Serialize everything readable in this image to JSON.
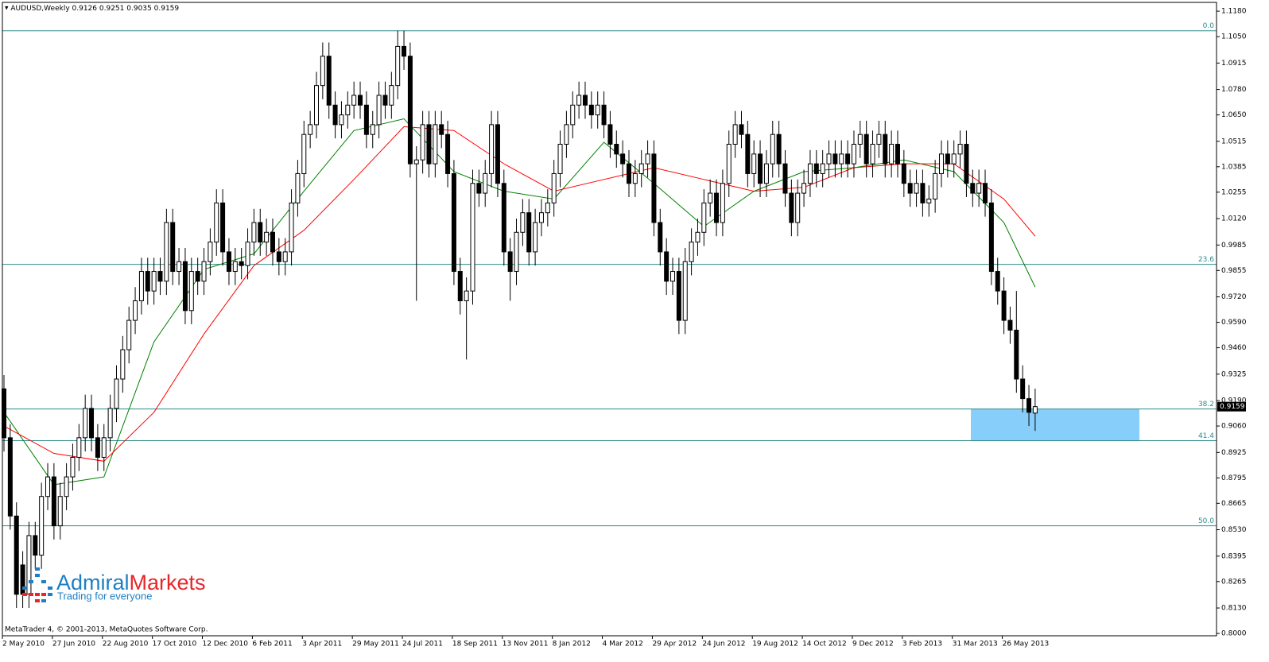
{
  "chart_data": {
    "type": "candlestick",
    "title": "AUDUSD,Weekly",
    "footer": "MetaTrader 4, © 2001-2013, MetaQuotes Software Corp.",
    "brand": [
      "Admiral",
      "Markets"
    ],
    "tagline": "Trading for everyone",
    "categories": [
      "2 May 2010",
      null,
      null,
      null,
      null,
      null,
      null,
      null,
      "27 Jun 2010",
      null,
      null,
      null,
      null,
      null,
      null,
      null,
      "22 Aug 2010",
      null,
      null,
      null,
      null,
      null,
      null,
      null,
      "17 Oct 2010",
      null,
      null,
      null,
      null,
      null,
      null,
      null,
      "12 Dec 2010",
      null,
      null,
      null,
      null,
      null,
      null,
      null,
      "6 Feb 2011",
      null,
      null,
      null,
      null,
      null,
      null,
      null,
      "3 Apr 2011",
      null,
      null,
      null,
      null,
      null,
      null,
      null,
      "29 May 2011",
      null,
      null,
      null,
      null,
      null,
      null,
      null,
      "24 Jul 2011",
      null,
      null,
      null,
      null,
      null,
      null,
      null,
      "18 Sep 2011",
      null,
      null,
      null,
      null,
      null,
      null,
      null,
      "13 Nov 2011",
      null,
      null,
      null,
      null,
      null,
      null,
      null,
      "8 Jan 2012",
      null,
      null,
      null,
      null,
      null,
      null,
      null,
      "4 Mar 2012",
      null,
      null,
      null,
      null,
      null,
      null,
      null,
      "29 Apr 2012",
      null,
      null,
      null,
      null,
      null,
      null,
      null,
      "24 Jun 2012",
      null,
      null,
      null,
      null,
      null,
      null,
      null,
      "19 Aug 2012",
      null,
      null,
      null,
      null,
      null,
      null,
      null,
      "14 Oct 2012",
      null,
      null,
      null,
      null,
      null,
      null,
      null,
      "9 Dec 2012",
      null,
      null,
      null,
      null,
      null,
      null,
      null,
      "3 Feb 2013",
      null,
      null,
      null,
      null,
      null,
      null,
      null,
      "31 Mar 2013",
      null,
      null,
      null,
      null,
      null,
      null,
      null,
      "26 May 2013",
      null,
      null,
      null,
      null,
      null
    ],
    "open": [
      0.925,
      0.9,
      0.86,
      0.835,
      0.82,
      0.85,
      0.84,
      0.87,
      0.88,
      0.855,
      0.87,
      0.88,
      0.89,
      0.9,
      0.915,
      0.9,
      0.89,
      0.9,
      0.915,
      0.93,
      0.945,
      0.96,
      0.97,
      0.985,
      0.975,
      0.985,
      0.98,
      1.01,
      0.985,
      0.99,
      0.965,
      0.985,
      0.98,
      0.99,
      1.0,
      1.02,
      0.995,
      0.985,
      0.99,
      0.988,
      1.0,
      1.01,
      1.0,
      1.005,
      0.995,
      0.99,
      0.995,
      1.02,
      1.035,
      1.055,
      1.06,
      1.08,
      1.095,
      1.07,
      1.06,
      1.065,
      1.07,
      1.075,
      1.07,
      1.055,
      1.06,
      1.075,
      1.07,
      1.08,
      1.1,
      1.095,
      1.04,
      1.042,
      1.06,
      1.04,
      1.06,
      1.055,
      1.035,
      0.985,
      0.97,
      0.975,
      1.03,
      1.025,
      1.035,
      1.06,
      1.03,
      0.995,
      0.985,
      1.005,
      1.015,
      0.995,
      1.01,
      1.015,
      1.02,
      1.035,
      1.05,
      1.06,
      1.07,
      1.075,
      1.07,
      1.065,
      1.07,
      1.06,
      1.05,
      1.045,
      1.04,
      1.03,
      1.035,
      1.04,
      1.045,
      1.01,
      0.995,
      0.98,
      0.985,
      0.96,
      0.99,
      1.0,
      1.005,
      1.02,
      1.025,
      1.01,
      1.03,
      1.05,
      1.06,
      1.055,
      1.035,
      1.045,
      1.03,
      1.04,
      1.055,
      1.04,
      1.025,
      1.01,
      1.025,
      1.03,
      1.04,
      1.035,
      1.04,
      1.045,
      1.04,
      1.045,
      1.04,
      1.05,
      1.055,
      1.04,
      1.05,
      1.055,
      1.04,
      1.05,
      1.04,
      1.03,
      1.025,
      1.03,
      1.02,
      1.022,
      1.035,
      1.045,
      1.04,
      1.045,
      1.05,
      1.03,
      1.025,
      1.03,
      1.02,
      0.985,
      0.975,
      0.96,
      0.955,
      0.93,
      0.92,
      0.9126
    ],
    "high": [
      0.932,
      0.907,
      0.867,
      0.842,
      0.857,
      0.857,
      0.877,
      0.887,
      0.887,
      0.877,
      0.887,
      0.897,
      0.907,
      0.922,
      0.922,
      0.907,
      0.907,
      0.922,
      0.937,
      0.952,
      0.967,
      0.977,
      0.992,
      0.992,
      0.992,
      0.992,
      1.017,
      1.017,
      0.997,
      0.997,
      0.992,
      0.992,
      0.997,
      1.007,
      1.027,
      1.027,
      1.002,
      0.997,
      0.997,
      1.007,
      1.017,
      1.017,
      1.012,
      1.012,
      1.002,
      1.002,
      1.027,
      1.042,
      1.062,
      1.067,
      1.087,
      1.102,
      1.102,
      1.077,
      1.072,
      1.077,
      1.082,
      1.082,
      1.077,
      1.067,
      1.082,
      1.082,
      1.087,
      1.108,
      1.108,
      1.102,
      1.049,
      1.067,
      1.067,
      1.067,
      1.067,
      1.062,
      1.042,
      0.992,
      0.982,
      1.037,
      1.037,
      1.042,
      1.067,
      1.067,
      1.037,
      1.002,
      1.012,
      1.022,
      1.022,
      1.017,
      1.022,
      1.027,
      1.042,
      1.057,
      1.067,
      1.077,
      1.082,
      1.082,
      1.077,
      1.077,
      1.077,
      1.067,
      1.057,
      1.052,
      1.047,
      1.042,
      1.047,
      1.052,
      1.052,
      1.017,
      1.002,
      0.992,
      0.992,
      0.997,
      1.007,
      1.012,
      1.027,
      1.032,
      1.032,
      1.037,
      1.057,
      1.067,
      1.067,
      1.062,
      1.052,
      1.052,
      1.047,
      1.062,
      1.062,
      1.047,
      1.032,
      1.032,
      1.037,
      1.047,
      1.047,
      1.047,
      1.052,
      1.052,
      1.052,
      1.052,
      1.057,
      1.062,
      1.062,
      1.057,
      1.062,
      1.062,
      1.057,
      1.057,
      1.047,
      1.037,
      1.037,
      1.037,
      1.029,
      1.042,
      1.052,
      1.052,
      1.052,
      1.057,
      1.057,
      1.037,
      1.037,
      1.037,
      1.027,
      0.992,
      0.982,
      0.967,
      0.975,
      0.937,
      0.927,
      0.9251
    ],
    "low": [
      0.893,
      0.853,
      0.813,
      0.813,
      0.813,
      0.833,
      0.833,
      0.863,
      0.848,
      0.848,
      0.863,
      0.873,
      0.883,
      0.893,
      0.893,
      0.883,
      0.883,
      0.893,
      0.908,
      0.923,
      0.938,
      0.953,
      0.963,
      0.968,
      0.968,
      0.973,
      0.973,
      0.978,
      0.978,
      0.958,
      0.958,
      0.973,
      0.973,
      0.983,
      0.993,
      0.988,
      0.978,
      0.978,
      0.981,
      0.981,
      0.993,
      0.993,
      0.993,
      0.988,
      0.983,
      0.983,
      0.988,
      1.013,
      1.028,
      1.048,
      1.053,
      1.073,
      1.063,
      1.053,
      1.053,
      1.058,
      1.063,
      1.063,
      1.048,
      1.048,
      1.053,
      1.063,
      1.063,
      1.073,
      1.088,
      1.033,
      0.97,
      1.035,
      1.033,
      1.033,
      1.048,
      1.028,
      0.978,
      0.963,
      0.94,
      0.968,
      1.018,
      1.018,
      1.028,
      1.023,
      0.988,
      0.97,
      0.978,
      0.998,
      0.988,
      0.988,
      1.003,
      1.008,
      1.013,
      1.028,
      1.043,
      1.053,
      1.063,
      1.063,
      1.058,
      1.058,
      1.053,
      1.043,
      1.038,
      1.033,
      1.023,
      1.023,
      1.028,
      1.033,
      1.003,
      0.988,
      0.973,
      0.973,
      0.953,
      0.953,
      0.983,
      0.993,
      0.998,
      1.013,
      1.003,
      1.003,
      1.023,
      1.043,
      1.048,
      1.028,
      1.028,
      1.023,
      1.023,
      1.033,
      1.033,
      1.018,
      1.003,
      1.003,
      1.018,
      1.023,
      1.028,
      1.028,
      1.033,
      1.033,
      1.033,
      1.033,
      1.033,
      1.043,
      1.033,
      1.033,
      1.043,
      1.033,
      1.033,
      1.033,
      1.023,
      1.018,
      1.018,
      1.013,
      1.013,
      1.015,
      1.028,
      1.033,
      1.033,
      1.038,
      1.023,
      1.018,
      1.018,
      1.013,
      0.978,
      0.968,
      0.953,
      0.948,
      0.923,
      0.913,
      0.906,
      0.9035
    ],
    "close": [
      0.9,
      0.86,
      0.82,
      0.82,
      0.85,
      0.84,
      0.87,
      0.88,
      0.855,
      0.87,
      0.88,
      0.89,
      0.9,
      0.915,
      0.9,
      0.89,
      0.9,
      0.915,
      0.93,
      0.945,
      0.96,
      0.97,
      0.985,
      0.975,
      0.985,
      0.98,
      1.01,
      0.985,
      0.99,
      0.965,
      0.985,
      0.98,
      0.99,
      1.0,
      1.02,
      0.995,
      0.985,
      0.99,
      0.988,
      1.0,
      1.01,
      1.0,
      1.005,
      0.995,
      0.99,
      0.995,
      1.02,
      1.035,
      1.055,
      1.06,
      1.08,
      1.095,
      1.07,
      1.06,
      1.065,
      1.07,
      1.075,
      1.07,
      1.055,
      1.06,
      1.075,
      1.07,
      1.08,
      1.1,
      1.095,
      1.04,
      1.042,
      1.06,
      1.04,
      1.06,
      1.055,
      1.035,
      0.985,
      0.97,
      0.975,
      1.03,
      1.025,
      1.035,
      1.06,
      1.03,
      0.995,
      0.985,
      1.005,
      1.015,
      0.995,
      1.01,
      1.015,
      1.02,
      1.035,
      1.05,
      1.06,
      1.07,
      1.075,
      1.07,
      1.065,
      1.07,
      1.06,
      1.05,
      1.045,
      1.04,
      1.03,
      1.035,
      1.04,
      1.045,
      1.01,
      0.995,
      0.98,
      0.985,
      0.96,
      0.99,
      1.0,
      1.005,
      1.02,
      1.025,
      1.01,
      1.03,
      1.05,
      1.06,
      1.055,
      1.035,
      1.045,
      1.03,
      1.04,
      1.055,
      1.04,
      1.025,
      1.01,
      1.025,
      1.03,
      1.04,
      1.035,
      1.04,
      1.045,
      1.04,
      1.045,
      1.04,
      1.05,
      1.055,
      1.04,
      1.05,
      1.055,
      1.04,
      1.05,
      1.04,
      1.03,
      1.025,
      1.03,
      1.02,
      1.022,
      1.035,
      1.045,
      1.04,
      1.045,
      1.05,
      1.03,
      1.025,
      1.03,
      1.02,
      0.985,
      0.975,
      0.96,
      0.955,
      0.93,
      0.92,
      0.913,
      0.9159
    ],
    "ma": [
      {
        "color": "#008000",
        "x": [
          0,
          8,
          16,
          24,
          32,
          40,
          48,
          56,
          64,
          72,
          80,
          88,
          96,
          104,
          112,
          120,
          128,
          136,
          144,
          152,
          160,
          165
        ],
        "values": [
          0.913,
          0.876,
          0.88,
          0.949,
          0.986,
          0.994,
          1.026,
          1.057,
          1.063,
          1.036,
          1.026,
          1.022,
          1.051,
          1.03,
          1.008,
          1.026,
          1.036,
          1.038,
          1.042,
          1.036,
          1.01,
          0.977
        ]
      },
      {
        "color": "#ff0000",
        "x": [
          0,
          8,
          16,
          24,
          32,
          40,
          48,
          56,
          64,
          72,
          80,
          88,
          96,
          104,
          112,
          120,
          128,
          136,
          144,
          152,
          160,
          165
        ],
        "values": [
          0.906,
          0.892,
          0.888,
          0.913,
          0.953,
          0.988,
          1.006,
          1.032,
          1.059,
          1.057,
          1.04,
          1.026,
          1.032,
          1.038,
          1.032,
          1.026,
          1.028,
          1.038,
          1.04,
          1.04,
          1.022,
          1.003
        ]
      }
    ],
    "levels": [
      {
        "value": 1.108,
        "label": "0.0"
      },
      {
        "value": 0.9886,
        "label": "23.6"
      },
      {
        "value": 0.9147,
        "label": "38.2"
      },
      {
        "value": 0.8985,
        "label": "41.4"
      },
      {
        "value": 0.855,
        "label": "50.0"
      }
    ],
    "level_color": "#2e8b8b",
    "zone_color": "#87cefa",
    "up_color": "#ffffff",
    "down_color": "#000000",
    "ylim": [
      0.7988,
      1.1225
    ],
    "yticks": [
      {
        "value": 1.118,
        "label": "1.1180"
      },
      {
        "value": 1.105,
        "label": "1.1050"
      },
      1.0915,
      {
        "value": 1.078,
        "label": "1.0780"
      },
      {
        "value": 1.065,
        "label": "1.0650"
      },
      1.0515,
      1.0385,
      1.0255,
      {
        "value": 1.012,
        "label": "1.0120"
      },
      0.9985,
      0.9855,
      {
        "value": 0.972,
        "label": "0.9720"
      },
      {
        "value": 0.959,
        "label": "0.9590"
      },
      {
        "value": 0.946,
        "label": "0.9460"
      },
      0.9325,
      {
        "value": 0.919,
        "label": "0.9190"
      },
      {
        "value": 0.906,
        "label": "0.9060"
      },
      0.8925,
      0.8795,
      0.8665,
      {
        "value": 0.853,
        "label": "0.8530"
      },
      0.8395,
      0.8265,
      {
        "value": 0.813,
        "label": "0.8130"
      },
      {
        "value": 0.8,
        "label": "0.8000"
      }
    ]
  }
}
